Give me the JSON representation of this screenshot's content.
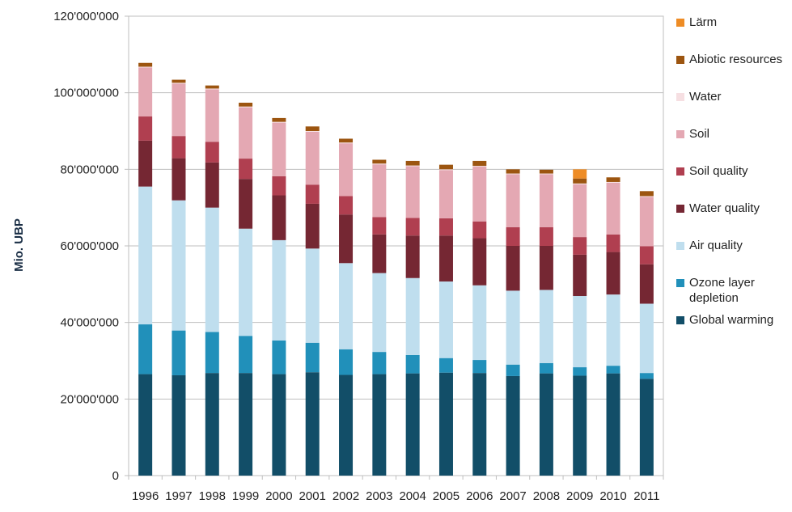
{
  "chart_data": {
    "type": "bar",
    "stacked": true,
    "title": "",
    "xlabel": "",
    "ylabel": "Mio. UBP",
    "ylim": [
      0,
      120000000
    ],
    "yticks": [
      {
        "value": 0,
        "label": "0"
      },
      {
        "value": 20000000,
        "label": "20'000'000"
      },
      {
        "value": 40000000,
        "label": "40'000'000"
      },
      {
        "value": 60000000,
        "label": "60'000'000"
      },
      {
        "value": 80000000,
        "label": "80'000'000"
      },
      {
        "value": 100000000,
        "label": "100'000'000"
      },
      {
        "value": 120000000,
        "label": "120'000'000"
      }
    ],
    "grid": true,
    "legend_position": "right",
    "categories": [
      "1996",
      "1997",
      "1998",
      "1999",
      "2000",
      "2001",
      "2002",
      "2003",
      "2004",
      "2005",
      "2006",
      "2007",
      "2008",
      "2009",
      "2010",
      "2011"
    ],
    "series": [
      {
        "name": "Global warming",
        "color": "#124e68",
        "values": [
          26500000,
          26200000,
          26800000,
          26800000,
          26500000,
          27000000,
          26300000,
          26500000,
          26700000,
          26900000,
          26800000,
          26000000,
          26700000,
          26100000,
          26700000,
          25300000
        ]
      },
      {
        "name": "Ozone layer depletion",
        "color": "#2190ba",
        "values": [
          13000000,
          11700000,
          10700000,
          9700000,
          8800000,
          7700000,
          6700000,
          5800000,
          4800000,
          3800000,
          3400000,
          3000000,
          2700000,
          2200000,
          2000000,
          1500000
        ]
      },
      {
        "name": "Air quality",
        "color": "#bfdeee",
        "values": [
          36000000,
          34000000,
          32500000,
          28000000,
          26200000,
          24600000,
          22500000,
          20600000,
          20100000,
          20000000,
          19500000,
          19300000,
          19100000,
          18600000,
          18600000,
          18100000
        ]
      },
      {
        "name": "Water quality",
        "color": "#752733",
        "values": [
          12000000,
          11000000,
          11800000,
          13000000,
          11700000,
          11700000,
          12700000,
          10100000,
          11100000,
          12000000,
          12300000,
          11700000,
          11500000,
          10800000,
          11100000,
          10300000
        ]
      },
      {
        "name": "Soil quality",
        "color": "#b03f50",
        "values": [
          6300000,
          5800000,
          5400000,
          5300000,
          5000000,
          5000000,
          4800000,
          4500000,
          4600000,
          4500000,
          4400000,
          4900000,
          4900000,
          4600000,
          4600000,
          4700000
        ]
      },
      {
        "name": "Soil",
        "color": "#e4a8b3",
        "values": [
          12800000,
          13700000,
          13700000,
          13400000,
          14000000,
          13800000,
          13800000,
          13800000,
          13500000,
          12600000,
          14300000,
          13800000,
          13800000,
          13800000,
          13500000,
          12900000
        ]
      },
      {
        "name": "Water",
        "color": "#f6dfe2",
        "values": [
          200000,
          200000,
          200000,
          200000,
          200000,
          200000,
          200000,
          200000,
          200000,
          200000,
          200000,
          200000,
          200000,
          200000,
          200000,
          200000
        ]
      },
      {
        "name": "Abiotic resources",
        "color": "#9c5510",
        "values": [
          1000000,
          800000,
          800000,
          1000000,
          1000000,
          1200000,
          1000000,
          1000000,
          1200000,
          1200000,
          1300000,
          1100000,
          1000000,
          1300000,
          1200000,
          1300000
        ]
      },
      {
        "name": "Lärm",
        "color": "#ee8c25",
        "values": [
          0,
          0,
          0,
          0,
          0,
          0,
          0,
          0,
          0,
          0,
          0,
          0,
          0,
          2400000,
          0,
          0
        ]
      }
    ]
  },
  "legend": [
    {
      "label": "Lärm",
      "color": "#ee8c25"
    },
    {
      "label": "Abiotic resources",
      "color": "#9c5510"
    },
    {
      "label": "Water",
      "color": "#f6dfe2"
    },
    {
      "label": "Soil",
      "color": "#e4a8b3"
    },
    {
      "label": "Soil quality",
      "color": "#b03f50"
    },
    {
      "label": "Water quality",
      "color": "#752733"
    },
    {
      "label": "Air quality",
      "color": "#bfdeee"
    },
    {
      "label": "Ozone layer depletion",
      "color": "#2190ba"
    },
    {
      "label": "Global warming",
      "color": "#124e68"
    }
  ]
}
